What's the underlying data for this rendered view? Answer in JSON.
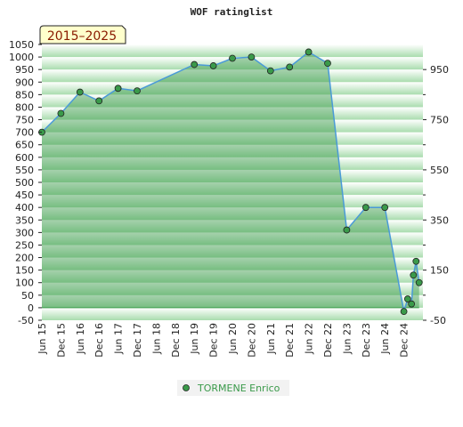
{
  "chart_data": {
    "type": "area",
    "title": "WOF ratinglist",
    "period_label": "2015–2025",
    "xlabel": "",
    "ylabel": "",
    "x_ticks": [
      "Jun 15",
      "Dec 15",
      "Jun 16",
      "Dec 16",
      "Jun 17",
      "Dec 17",
      "Jun 18",
      "Dec 18",
      "Jun 19",
      "Dec 19",
      "Jun 20",
      "Dec 20",
      "Jun 21",
      "Dec 21",
      "Jun 22",
      "Dec 22",
      "Jun 23",
      "Dec 23",
      "Jun 24",
      "Dec 24"
    ],
    "y_left": {
      "min": -50,
      "max": 1050,
      "step": 50
    },
    "y_right": {
      "ticks": [
        950,
        750,
        550,
        350,
        150,
        -50
      ]
    },
    "grid": true,
    "legend_position": "bottom",
    "series": [
      {
        "name": "TORMENE Enrico",
        "color": "#3a9a4a",
        "points": [
          {
            "t": 0.0,
            "y": 700
          },
          {
            "t": 0.5,
            "y": 775
          },
          {
            "t": 1.0,
            "y": 860
          },
          {
            "t": 1.5,
            "y": 825
          },
          {
            "t": 2.0,
            "y": 875
          },
          {
            "t": 2.5,
            "y": 865
          },
          {
            "t": 4.0,
            "y": 970
          },
          {
            "t": 4.5,
            "y": 965
          },
          {
            "t": 5.0,
            "y": 995
          },
          {
            "t": 5.5,
            "y": 1000
          },
          {
            "t": 6.0,
            "y": 945
          },
          {
            "t": 6.5,
            "y": 960
          },
          {
            "t": 7.0,
            "y": 1020
          },
          {
            "t": 7.5,
            "y": 975
          },
          {
            "t": 8.0,
            "y": 310
          },
          {
            "t": 8.5,
            "y": 400
          },
          {
            "t": 9.0,
            "y": 400
          },
          {
            "t": 9.5,
            "y": -15
          },
          {
            "t": 9.6,
            "y": 35
          },
          {
            "t": 9.7,
            "y": 15
          },
          {
            "t": 9.75,
            "y": 130
          },
          {
            "t": 9.82,
            "y": 185
          },
          {
            "t": 9.9,
            "y": 100
          }
        ]
      }
    ]
  }
}
